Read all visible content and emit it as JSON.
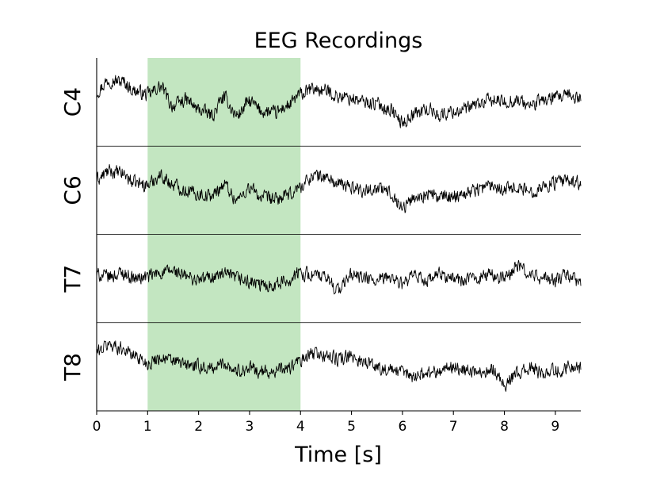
{
  "chart_data": {
    "type": "line",
    "title": "EEG Recordings",
    "xlabel": "Time [s]",
    "xlim": [
      0,
      9.5
    ],
    "x_ticks": [
      "0",
      "1",
      "2",
      "3",
      "4",
      "5",
      "6",
      "7",
      "8",
      "9"
    ],
    "highlight": {
      "start": 1,
      "end": 4,
      "color": "#c3e6c1"
    },
    "trace_color": "#000000",
    "channels": [
      "C4",
      "C6",
      "T7",
      "T8"
    ],
    "series": [
      {
        "name": "C4",
        "points": [
          [
            0,
            0.3
          ],
          [
            0.25,
            0.6
          ],
          [
            0.5,
            0.55
          ],
          [
            0.75,
            0.3
          ],
          [
            1,
            0.2
          ],
          [
            1.25,
            0.4
          ],
          [
            1.5,
            -0.1
          ],
          [
            1.75,
            0.05
          ],
          [
            2,
            -0.2
          ],
          [
            2.25,
            -0.35
          ],
          [
            2.5,
            0.1
          ],
          [
            2.75,
            -0.35
          ],
          [
            3,
            0.0
          ],
          [
            3.25,
            -0.25
          ],
          [
            3.5,
            -0.3
          ],
          [
            3.75,
            -0.1
          ],
          [
            4,
            0.2
          ],
          [
            4.25,
            0.35
          ],
          [
            4.5,
            0.3
          ],
          [
            4.75,
            0.15
          ],
          [
            5,
            0.1
          ],
          [
            5.25,
            0.0
          ],
          [
            5.5,
            -0.05
          ],
          [
            5.75,
            -0.2
          ],
          [
            6,
            -0.55
          ],
          [
            6.25,
            -0.3
          ],
          [
            6.5,
            -0.2
          ],
          [
            6.75,
            -0.35
          ],
          [
            7,
            -0.25
          ],
          [
            7.25,
            -0.2
          ],
          [
            7.5,
            -0.05
          ],
          [
            7.75,
            0.05
          ],
          [
            8,
            0.0
          ],
          [
            8.25,
            0.05
          ],
          [
            8.5,
            -0.1
          ],
          [
            8.75,
            0.05
          ],
          [
            9,
            0.1
          ],
          [
            9.25,
            0.15
          ],
          [
            9.5,
            0.1
          ]
        ]
      },
      {
        "name": "C6",
        "points": [
          [
            0,
            0.3
          ],
          [
            0.25,
            0.5
          ],
          [
            0.5,
            0.45
          ],
          [
            0.75,
            0.2
          ],
          [
            1,
            0.15
          ],
          [
            1.25,
            0.4
          ],
          [
            1.5,
            0.15
          ],
          [
            1.75,
            0.0
          ],
          [
            2,
            -0.1
          ],
          [
            2.25,
            -0.15
          ],
          [
            2.5,
            0.15
          ],
          [
            2.75,
            -0.25
          ],
          [
            3,
            0.05
          ],
          [
            3.25,
            -0.2
          ],
          [
            3.5,
            -0.25
          ],
          [
            3.75,
            -0.15
          ],
          [
            4,
            0.1
          ],
          [
            4.25,
            0.4
          ],
          [
            4.5,
            0.35
          ],
          [
            4.75,
            0.15
          ],
          [
            5,
            0.1
          ],
          [
            5.25,
            0.0
          ],
          [
            5.5,
            0.05
          ],
          [
            5.75,
            -0.05
          ],
          [
            6,
            -0.45
          ],
          [
            6.25,
            -0.2
          ],
          [
            6.5,
            -0.1
          ],
          [
            6.75,
            -0.2
          ],
          [
            7,
            -0.15
          ],
          [
            7.25,
            -0.05
          ],
          [
            7.5,
            0.05
          ],
          [
            7.75,
            0.15
          ],
          [
            8,
            0.05
          ],
          [
            8.25,
            0.1
          ],
          [
            8.5,
            -0.05
          ],
          [
            8.75,
            0.1
          ],
          [
            9,
            0.2
          ],
          [
            9.25,
            0.25
          ],
          [
            9.5,
            0.2
          ]
        ]
      },
      {
        "name": "T7",
        "points": [
          [
            0,
            0.1
          ],
          [
            0.25,
            0.05
          ],
          [
            0.5,
            0.15
          ],
          [
            0.75,
            0.0
          ],
          [
            1,
            0.05
          ],
          [
            1.25,
            0.15
          ],
          [
            1.5,
            0.2
          ],
          [
            1.75,
            0.05
          ],
          [
            2,
            -0.05
          ],
          [
            2.25,
            0.05
          ],
          [
            2.5,
            0.1
          ],
          [
            2.75,
            0.0
          ],
          [
            3,
            -0.1
          ],
          [
            3.25,
            -0.2
          ],
          [
            3.5,
            -0.15
          ],
          [
            3.75,
            -0.05
          ],
          [
            4,
            0.15
          ],
          [
            4.25,
            0.1
          ],
          [
            4.5,
            0.0
          ],
          [
            4.75,
            -0.3
          ],
          [
            5,
            0.1
          ],
          [
            5.25,
            0.0
          ],
          [
            5.5,
            -0.1
          ],
          [
            5.75,
            0.05
          ],
          [
            6,
            -0.15
          ],
          [
            6.25,
            0.05
          ],
          [
            6.5,
            -0.05
          ],
          [
            6.75,
            0.1
          ],
          [
            7,
            0.0
          ],
          [
            7.25,
            -0.05
          ],
          [
            7.5,
            0.05
          ],
          [
            7.75,
            0.1
          ],
          [
            8,
            0.0
          ],
          [
            8.25,
            0.35
          ],
          [
            8.5,
            0.1
          ],
          [
            8.75,
            0.0
          ],
          [
            9,
            -0.05
          ],
          [
            9.25,
            0.1
          ],
          [
            9.5,
            -0.15
          ]
        ]
      },
      {
        "name": "T8",
        "points": [
          [
            0,
            0.4
          ],
          [
            0.25,
            0.6
          ],
          [
            0.5,
            0.5
          ],
          [
            0.75,
            0.3
          ],
          [
            1,
            0.1
          ],
          [
            1.25,
            0.25
          ],
          [
            1.5,
            0.15
          ],
          [
            1.75,
            0.05
          ],
          [
            2,
            0.0
          ],
          [
            2.25,
            -0.05
          ],
          [
            2.5,
            0.1
          ],
          [
            2.75,
            -0.1
          ],
          [
            3,
            -0.05
          ],
          [
            3.25,
            -0.15
          ],
          [
            3.5,
            -0.1
          ],
          [
            3.75,
            -0.05
          ],
          [
            4,
            0.15
          ],
          [
            4.25,
            0.35
          ],
          [
            4.5,
            0.3
          ],
          [
            4.75,
            0.2
          ],
          [
            5,
            0.25
          ],
          [
            5.25,
            0.15
          ],
          [
            5.5,
            0.0
          ],
          [
            5.75,
            -0.1
          ],
          [
            6,
            -0.15
          ],
          [
            6.25,
            -0.25
          ],
          [
            6.5,
            -0.15
          ],
          [
            6.75,
            -0.1
          ],
          [
            7,
            0.0
          ],
          [
            7.25,
            -0.1
          ],
          [
            7.5,
            -0.15
          ],
          [
            7.75,
            -0.05
          ],
          [
            8,
            -0.45
          ],
          [
            8.25,
            -0.2
          ],
          [
            8.5,
            -0.05
          ],
          [
            8.75,
            -0.15
          ],
          [
            9,
            -0.1
          ],
          [
            9.25,
            0.0
          ],
          [
            9.5,
            -0.05
          ]
        ]
      }
    ],
    "grid": false,
    "legend": "none"
  }
}
